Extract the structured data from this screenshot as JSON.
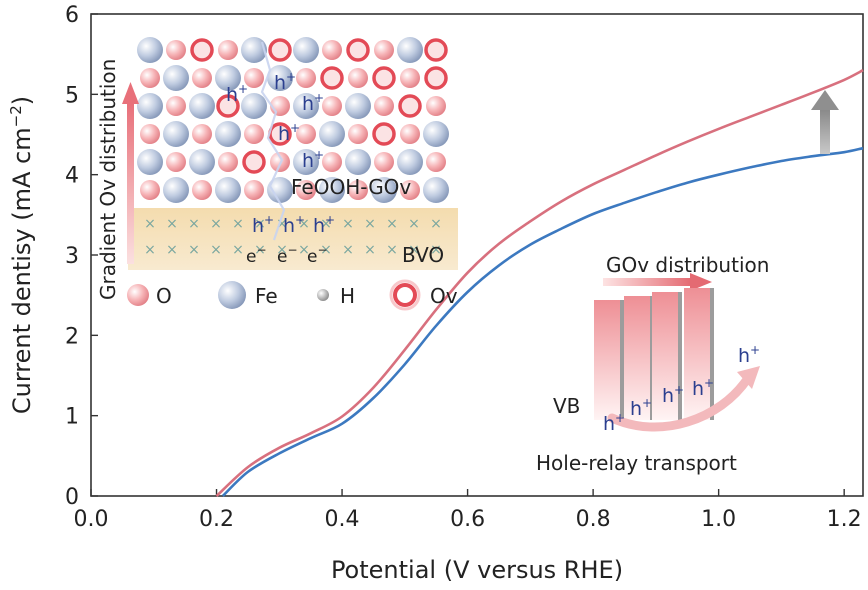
{
  "chart_data": {
    "type": "line",
    "xlabel": "Potential (V versus RHE)",
    "ylabel_main": "Current dentisy (mA cm",
    "ylabel_sup": "−2",
    "ylabel_close": ")",
    "xlim": [
      0.0,
      1.23
    ],
    "ylim": [
      0,
      6
    ],
    "x_ticks": [
      "0.0",
      "0.2",
      "0.4",
      "0.6",
      "0.8",
      "1.0",
      "1.2"
    ],
    "x_tick_values": [
      0.0,
      0.2,
      0.4,
      0.6,
      0.8,
      1.0,
      1.2
    ],
    "y_ticks": [
      "0",
      "1",
      "2",
      "3",
      "4",
      "5",
      "6"
    ],
    "y_tick_values": [
      0,
      1,
      2,
      3,
      4,
      5,
      6
    ],
    "series": [
      {
        "color": "#d8707e",
        "x": [
          0.2,
          0.25,
          0.3,
          0.35,
          0.4,
          0.45,
          0.5,
          0.55,
          0.6,
          0.65,
          0.7,
          0.75,
          0.8,
          0.85,
          0.9,
          0.95,
          1.0,
          1.05,
          1.1,
          1.15,
          1.2,
          1.23
        ],
        "y": [
          0.0,
          0.36,
          0.6,
          0.78,
          0.99,
          1.35,
          1.82,
          2.32,
          2.78,
          3.14,
          3.42,
          3.67,
          3.88,
          4.06,
          4.24,
          4.41,
          4.57,
          4.72,
          4.87,
          5.02,
          5.18,
          5.3
        ]
      },
      {
        "color": "#3c79c0",
        "x": [
          0.21,
          0.25,
          0.3,
          0.35,
          0.4,
          0.45,
          0.5,
          0.55,
          0.6,
          0.65,
          0.7,
          0.75,
          0.8,
          0.85,
          0.9,
          0.95,
          1.0,
          1.05,
          1.1,
          1.15,
          1.2,
          1.23
        ],
        "y": [
          0.0,
          0.3,
          0.53,
          0.72,
          0.9,
          1.22,
          1.64,
          2.12,
          2.54,
          2.87,
          3.13,
          3.33,
          3.51,
          3.65,
          3.78,
          3.9,
          4.0,
          4.09,
          4.17,
          4.23,
          4.28,
          4.33
        ]
      }
    ]
  },
  "inset_structure": {
    "side_label": "Gradient Ov distribution",
    "layer_label": "FeOOH-GOv",
    "substrate_label": "BVO",
    "hole": "h",
    "plus": "+",
    "electron": "e",
    "minus": "−",
    "legend": [
      {
        "label": "O",
        "color": "#f3a0a4"
      },
      {
        "label": "Fe",
        "color": "#aab9d2"
      },
      {
        "label": "H",
        "color": "#c9c9c9"
      },
      {
        "label": "Ov",
        "color": "#e34a56"
      }
    ]
  },
  "inset_relay": {
    "title": "GOv distribution",
    "vb_label": "VB",
    "hole": "h",
    "plus": "+",
    "caption": "Hole-relay transport"
  },
  "colors": {
    "red_curve": "#d8707e",
    "blue_curve": "#3c79c0",
    "arrow_gray": "#9a9a9a",
    "hole_blue": "#2b3f8f"
  }
}
